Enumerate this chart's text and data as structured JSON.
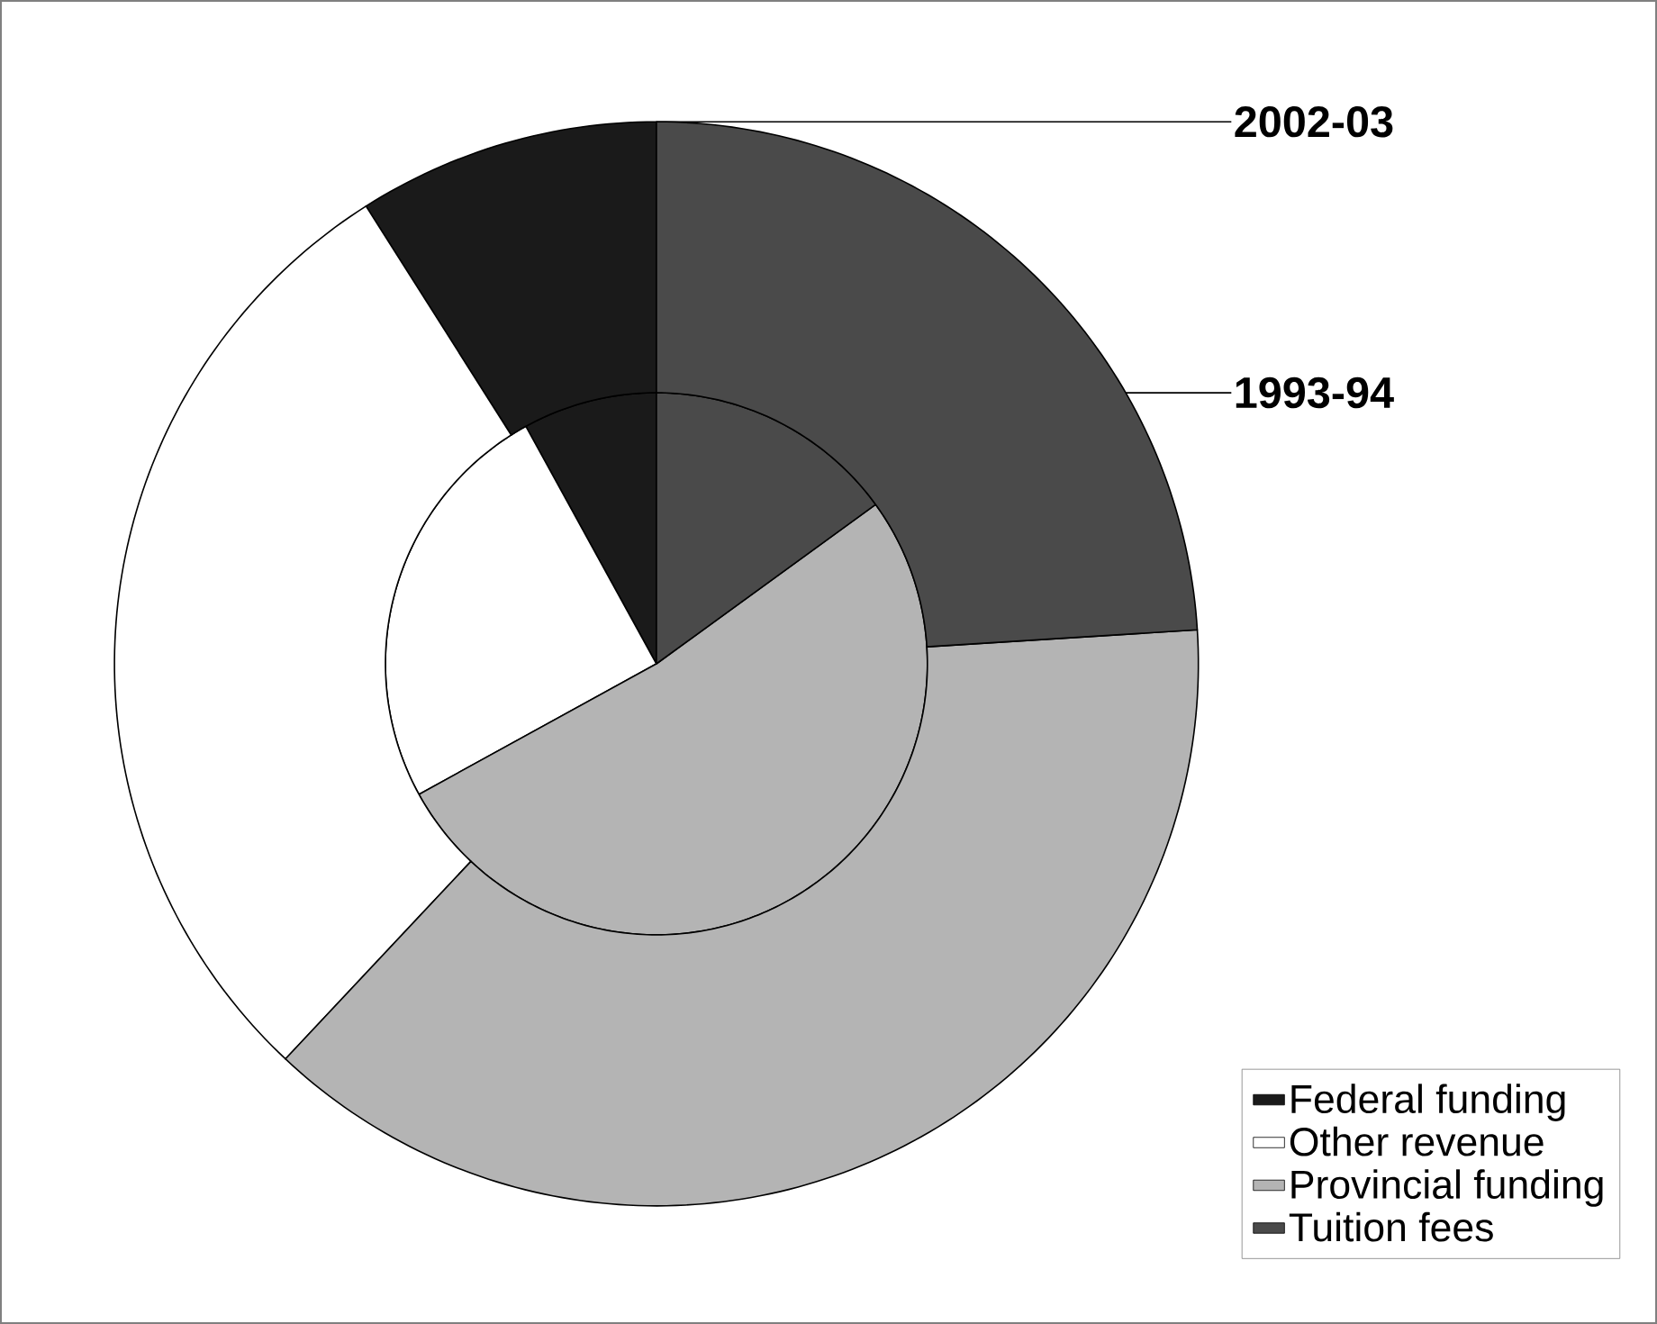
{
  "chart_data": {
    "type": "donut",
    "categories": [
      "Federal funding",
      "Other revenue",
      "Provincial funding",
      "Tuition fees"
    ],
    "colors": [
      "#1a1a1a",
      "#ffffff",
      "#b4b4b4",
      "#4a4a4a"
    ],
    "series": [
      {
        "name": "1993-94",
        "values": [
          8,
          25,
          52,
          15
        ]
      },
      {
        "name": "2002-03",
        "values": [
          9,
          29,
          38,
          24
        ]
      }
    ],
    "legend": "bottom right"
  }
}
